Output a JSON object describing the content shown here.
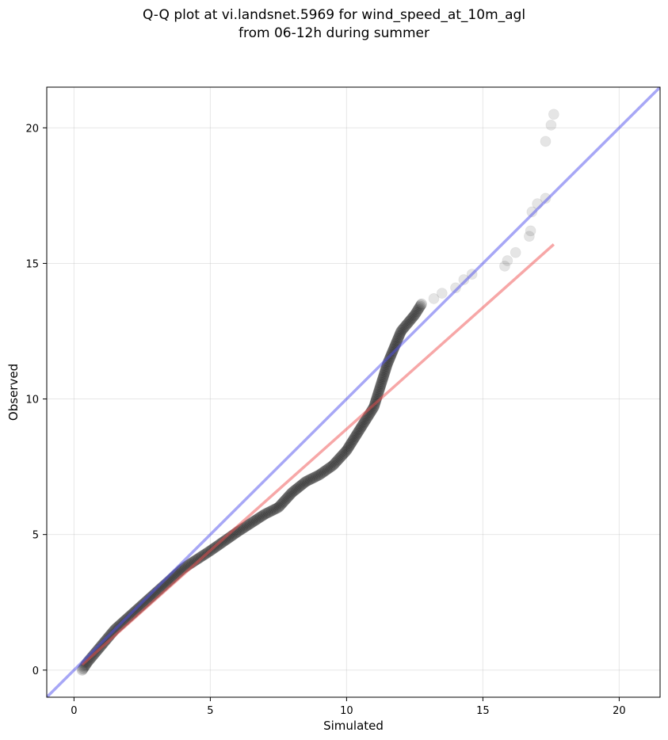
{
  "chart_data": {
    "type": "scatter",
    "title_line1": "Q-Q plot at vi.landsnet.5969 for wind_speed_at_10m_agl",
    "title_line2": "from 06-12h during summer",
    "xlabel": "Simulated",
    "ylabel": "Observed",
    "xlim": [
      -1,
      21.5
    ],
    "ylim": [
      -1,
      21.5
    ],
    "xticks": [
      0,
      5,
      10,
      15,
      20
    ],
    "yticks": [
      0,
      5,
      10,
      15,
      20
    ],
    "grid": true,
    "colors": {
      "points": "#000000",
      "fit_line": "#f05050",
      "identity_line": "#5050ee"
    },
    "quantile_curve": [
      [
        0.3,
        0.0
      ],
      [
        0.5,
        0.3
      ],
      [
        1.0,
        0.9
      ],
      [
        1.5,
        1.5
      ],
      [
        2.0,
        1.95
      ],
      [
        3.0,
        2.85
      ],
      [
        4.0,
        3.75
      ],
      [
        5.0,
        4.4
      ],
      [
        6.0,
        5.1
      ],
      [
        7.0,
        5.75
      ],
      [
        7.5,
        6.0
      ],
      [
        8.0,
        6.55
      ],
      [
        8.5,
        6.95
      ],
      [
        9.0,
        7.2
      ],
      [
        9.5,
        7.55
      ],
      [
        10.0,
        8.1
      ],
      [
        10.5,
        8.9
      ],
      [
        11.0,
        9.7
      ],
      [
        11.5,
        11.3
      ],
      [
        12.0,
        12.5
      ],
      [
        12.5,
        13.1
      ],
      [
        12.75,
        13.5
      ]
    ],
    "tail_points": [
      [
        13.2,
        13.7
      ],
      [
        13.5,
        13.9
      ],
      [
        14.0,
        14.1
      ],
      [
        14.3,
        14.4
      ],
      [
        14.6,
        14.6
      ],
      [
        15.8,
        14.9
      ],
      [
        15.9,
        15.1
      ],
      [
        16.2,
        15.4
      ],
      [
        16.7,
        16.0
      ],
      [
        16.75,
        16.2
      ],
      [
        16.8,
        16.9
      ],
      [
        17.0,
        17.2
      ],
      [
        17.3,
        17.4
      ],
      [
        17.3,
        19.5
      ],
      [
        17.5,
        20.1
      ],
      [
        17.6,
        20.5
      ]
    ],
    "fit_line": {
      "x": [
        0.3,
        17.6
      ],
      "y": [
        0.2,
        15.7
      ]
    },
    "identity_line": {
      "x": [
        -1,
        21.5
      ],
      "y": [
        -1,
        21.5
      ]
    }
  }
}
